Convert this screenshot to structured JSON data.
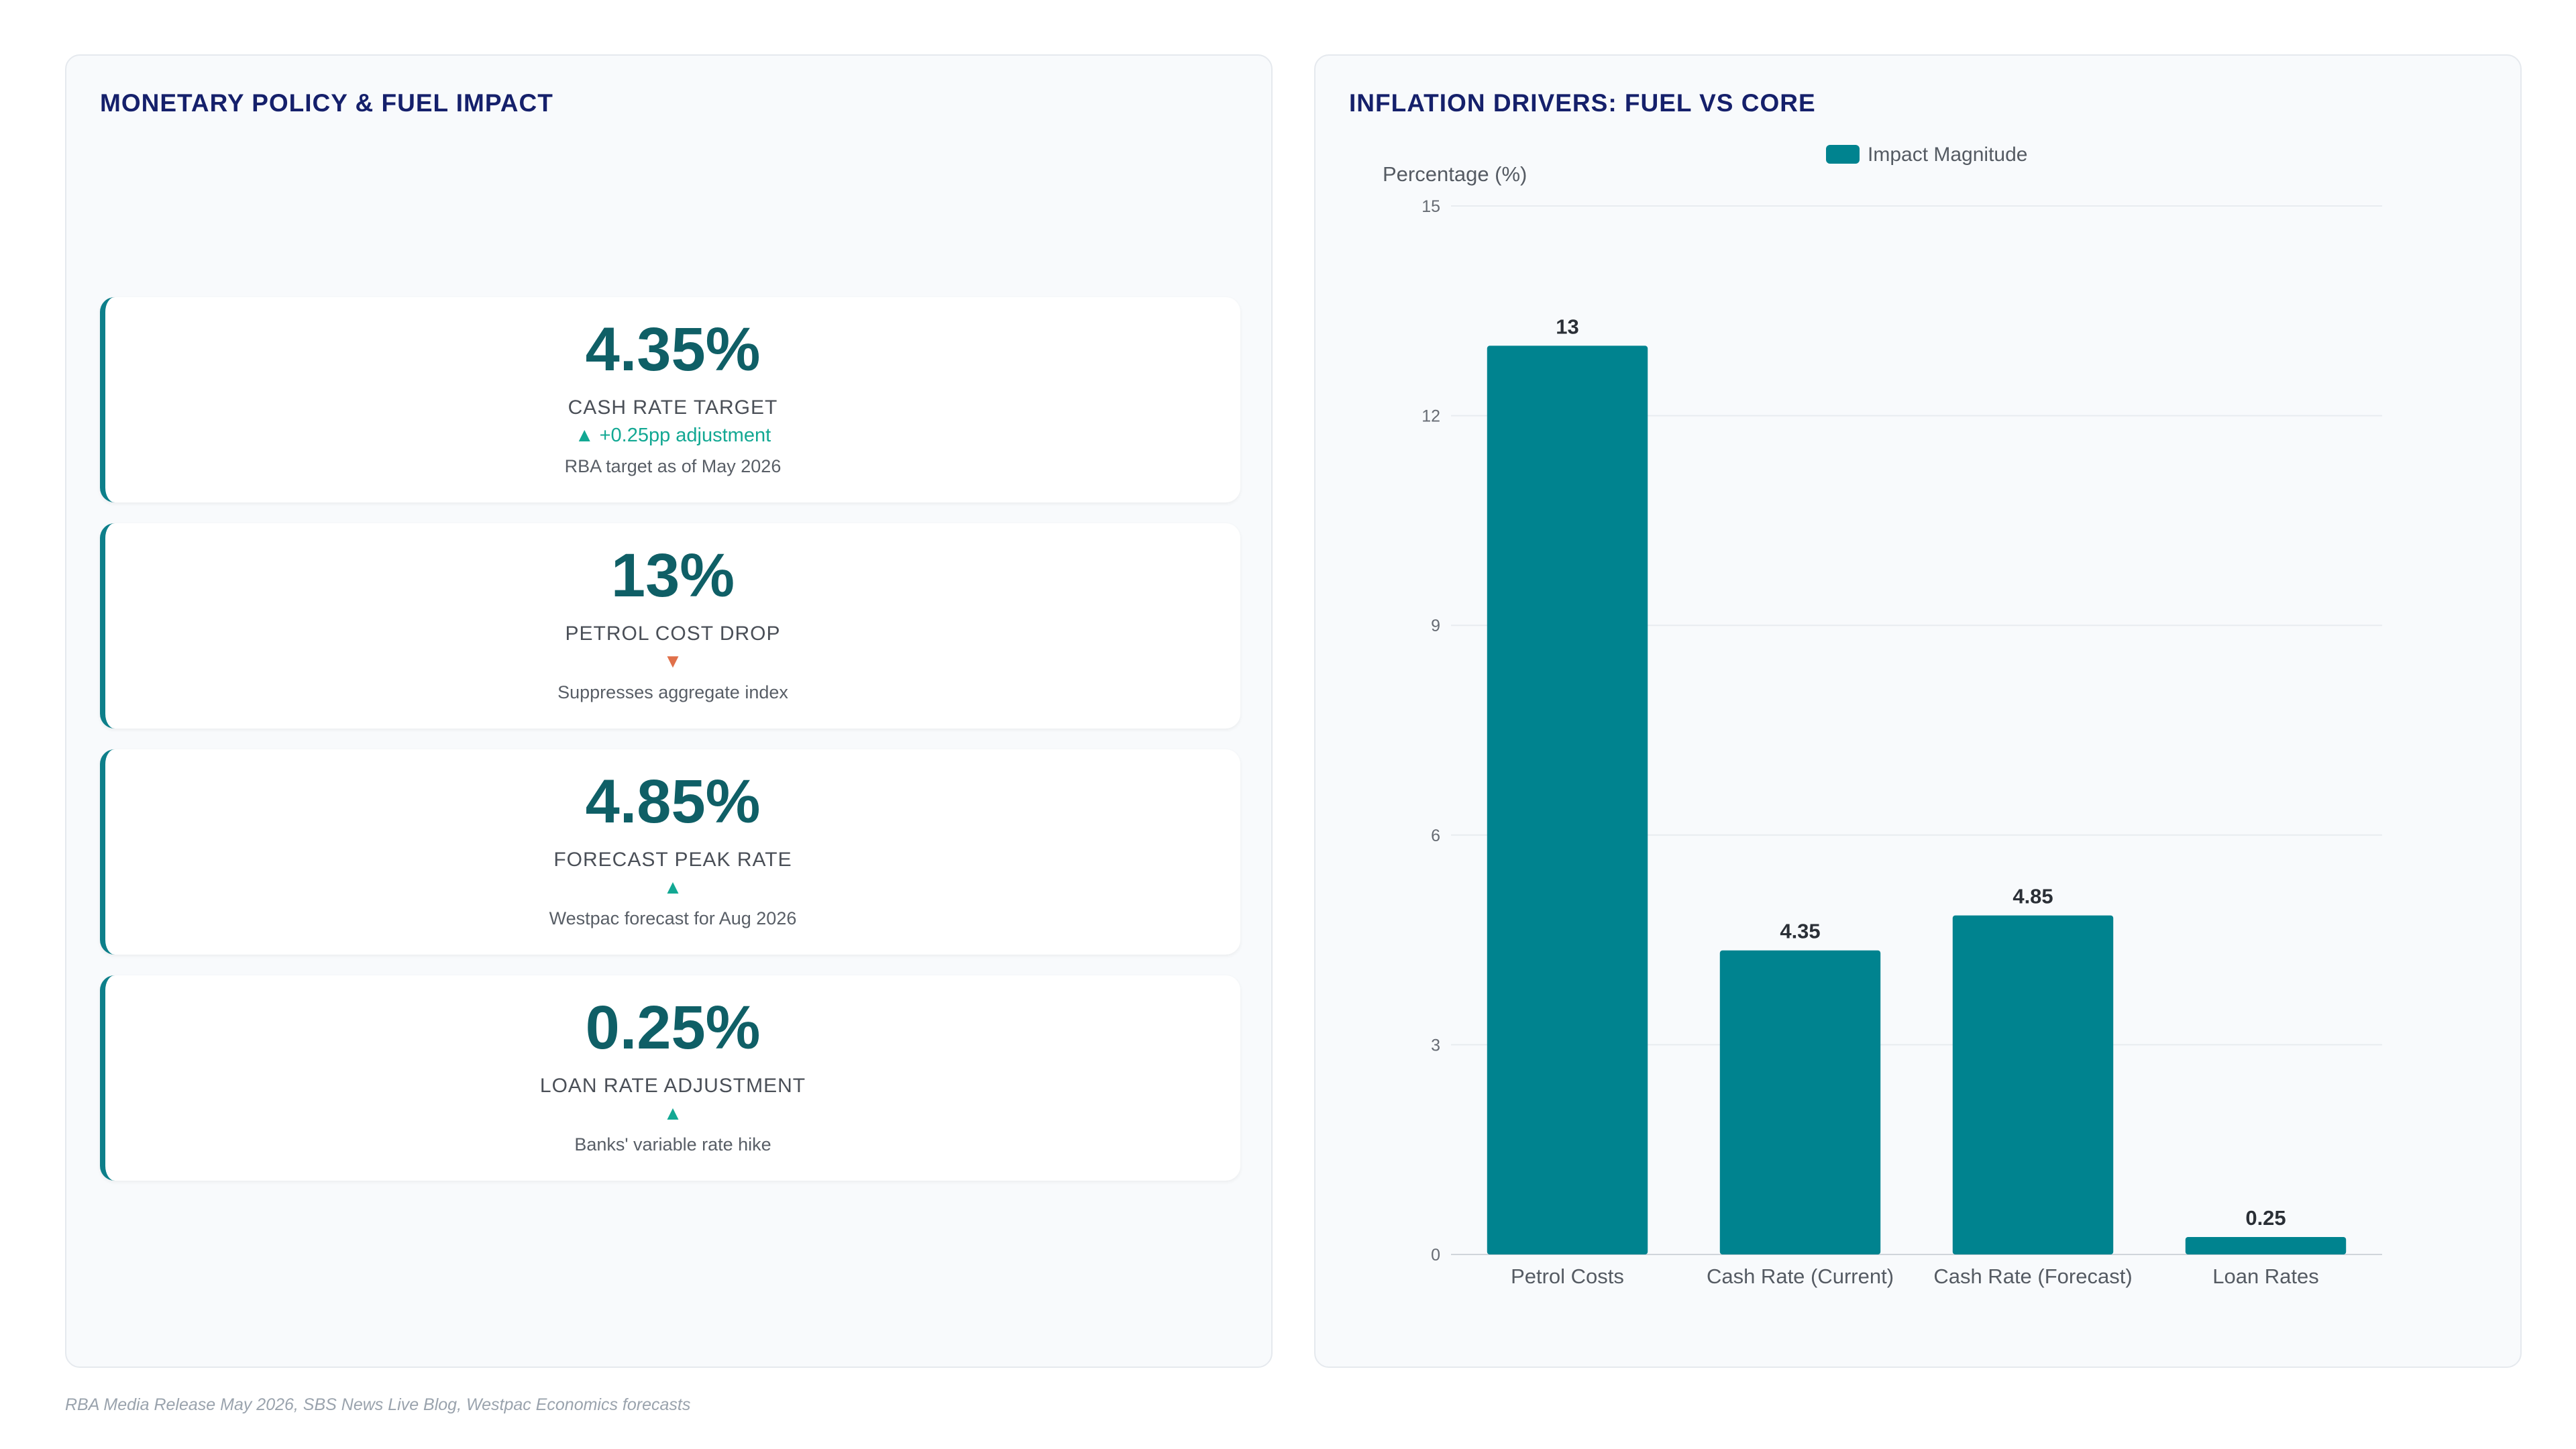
{
  "left_panel": {
    "title": "MONETARY POLICY & FUEL IMPACT",
    "cards": [
      {
        "value": "4.35%",
        "label": "CASH RATE TARGET",
        "trend_symbol": "▲",
        "trend_text": "+0.25pp adjustment",
        "trend_direction": "up",
        "note": "RBA target as of May 2026"
      },
      {
        "value": "13%",
        "label": "PETROL COST DROP",
        "trend_symbol": "▼",
        "trend_text": "",
        "trend_direction": "down",
        "note": "Suppresses aggregate index"
      },
      {
        "value": "4.85%",
        "label": "FORECAST PEAK RATE",
        "trend_symbol": "▲",
        "trend_text": "",
        "trend_direction": "up",
        "note": "Westpac forecast for Aug 2026"
      },
      {
        "value": "0.25%",
        "label": "LOAN RATE ADJUSTMENT",
        "trend_symbol": "▲",
        "trend_text": "",
        "trend_direction": "up",
        "note": "Banks' variable rate hike"
      }
    ]
  },
  "right_panel": {
    "title": "INFLATION DRIVERS: FUEL VS CORE"
  },
  "chart_data": {
    "type": "bar",
    "title": "INFLATION DRIVERS: FUEL VS CORE",
    "categories": [
      "Petrol Costs",
      "Cash Rate (Current)",
      "Cash Rate (Forecast)",
      "Loan Rates"
    ],
    "series": [
      {
        "name": "Impact Magnitude",
        "values": [
          13,
          4.35,
          4.85,
          0.25
        ]
      }
    ],
    "data_labels": [
      "13",
      "4.35",
      "4.85",
      "0.25"
    ],
    "ylabel": "Percentage (%)",
    "xlabel": "",
    "ylim": [
      0,
      15
    ],
    "yticks": [
      0,
      3,
      6,
      9,
      12,
      15
    ],
    "grid": true,
    "legend": "top-center",
    "colors": {
      "bar": "#00838f",
      "grid": "#e8ecf0",
      "axis": "#d0d5db"
    }
  },
  "footer": {
    "source": "RBA Media Release May 2026, SBS News Live Blog, Westpac Economics forecasts"
  }
}
